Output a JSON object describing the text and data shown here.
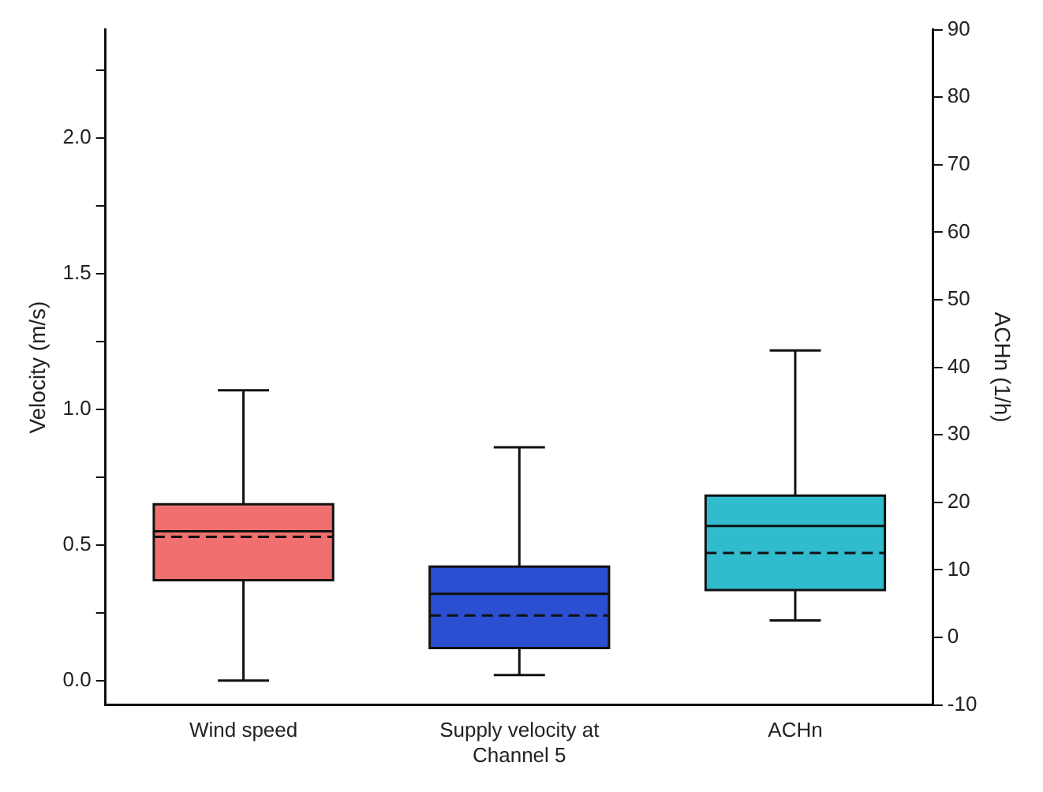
{
  "chart_data": {
    "type": "box",
    "ylabel": "Velocity (m/s)",
    "y2label": "ACHn (1/h)",
    "categories": [
      "Wind speed",
      "Supply velocity at Channel 5",
      "ACHn"
    ],
    "series": [
      {
        "colors": [
          "#f07070",
          "#2a4fd0",
          null
        ],
        "boxes": [
          {
            "low": 0,
            "q1": 0.37,
            "median": 0.55,
            "q3": 0.65,
            "high": 1.07,
            "mean": 0.53
          },
          {
            "low": 0.02,
            "q1": 0.12,
            "median": 0.32,
            "q3": 0.42,
            "high": 0.86,
            "mean": 0.24
          },
          null
        ]
      },
      {
        "axis": "y2",
        "colors": [
          null,
          null,
          "#30bccc"
        ],
        "boxes": [
          null,
          null,
          {
            "low": 2.5,
            "q1": 7,
            "median": 16.5,
            "q3": 21,
            "high": 42.5,
            "mean": 12.5
          }
        ]
      }
    ],
    "ylim": [
      -0.09,
      2.4
    ],
    "yticks": [
      {
        "value": 0,
        "label": "0.0"
      },
      {
        "value": 0.25,
        "label": null
      },
      {
        "value": 0.5,
        "label": "0.5"
      },
      {
        "value": 0.75,
        "label": null
      },
      {
        "value": 1,
        "label": "1.0"
      },
      {
        "value": 1.25,
        "label": null
      },
      {
        "value": 1.5,
        "label": "1.5"
      },
      {
        "value": 1.75,
        "label": null
      },
      {
        "value": 2,
        "label": "2.0"
      },
      {
        "value": 2.25,
        "label": null
      }
    ],
    "y2lim": [
      -10,
      90
    ],
    "y2ticks": [
      -10,
      0,
      10,
      20,
      30,
      40,
      50,
      60,
      70,
      80,
      90
    ],
    "grid": false,
    "legend": false
  }
}
